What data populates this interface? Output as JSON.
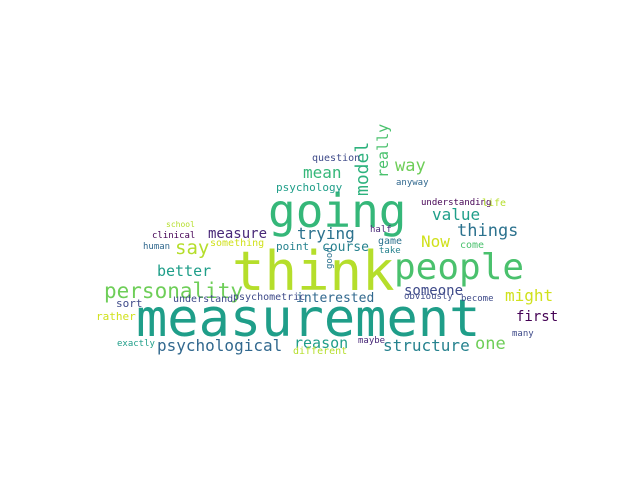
{
  "words": [
    {
      "text": "measurement",
      "color": "#1f9e89"
    },
    {
      "text": "think",
      "color": "#b5de2b"
    },
    {
      "text": "going",
      "color": "#35b779"
    },
    {
      "text": "people",
      "color": "#4ac16d"
    },
    {
      "text": "personality",
      "color": "#6ece58"
    },
    {
      "text": "psychological",
      "color": "#31688e"
    },
    {
      "text": "structure",
      "color": "#26828e"
    },
    {
      "text": "model",
      "color": "#2db27d"
    },
    {
      "text": "really",
      "color": "#4ac16d"
    },
    {
      "text": "way",
      "color": "#6ece58"
    },
    {
      "text": "mean",
      "color": "#35b779"
    },
    {
      "text": "things",
      "color": "#2c728e"
    },
    {
      "text": "value",
      "color": "#1f9e89"
    },
    {
      "text": "trying",
      "color": "#2c728e"
    },
    {
      "text": "say",
      "color": "#b5de2b"
    },
    {
      "text": "measure",
      "color": "#482878"
    },
    {
      "text": "better",
      "color": "#1f9e89"
    },
    {
      "text": "Now",
      "color": "#d0e11c"
    },
    {
      "text": "might",
      "color": "#d0e11c"
    },
    {
      "text": "someone",
      "color": "#3e4a89"
    },
    {
      "text": "reason",
      "color": "#1f9e89"
    },
    {
      "text": "course",
      "color": "#26828e"
    },
    {
      "text": "one",
      "color": "#6ece58"
    },
    {
      "text": "first",
      "color": "#440154"
    },
    {
      "text": "interested",
      "color": "#31688e"
    },
    {
      "text": "psychology",
      "color": "#1f9e89"
    },
    {
      "text": "question",
      "color": "#3e4a89"
    },
    {
      "text": "anyway",
      "color": "#31688e"
    },
    {
      "text": "understanding",
      "color": "#440154"
    },
    {
      "text": "life",
      "color": "#b5de2b"
    },
    {
      "text": "school",
      "color": "#b5de2b"
    },
    {
      "text": "clinical",
      "color": "#440154"
    },
    {
      "text": "human",
      "color": "#31688e"
    },
    {
      "text": "something",
      "color": "#d0e11c"
    },
    {
      "text": "point",
      "color": "#26828e"
    },
    {
      "text": "half",
      "color": "#482878"
    },
    {
      "text": "game",
      "color": "#2c728e"
    },
    {
      "text": "take",
      "color": "#26828e"
    },
    {
      "text": "come",
      "color": "#4ac16d"
    },
    {
      "text": "good",
      "color": "#2c728e"
    },
    {
      "text": "sort",
      "color": "#3e4a89"
    },
    {
      "text": "understand",
      "color": "#3e4a89"
    },
    {
      "text": "psychometric",
      "color": "#3e4a89"
    },
    {
      "text": "obviously",
      "color": "#3e4a89"
    },
    {
      "text": "become",
      "color": "#3e4a89"
    },
    {
      "text": "rather",
      "color": "#d0e11c"
    },
    {
      "text": "many",
      "color": "#3e4a89"
    },
    {
      "text": "exactly",
      "color": "#1f9e89"
    },
    {
      "text": "maybe",
      "color": "#482878"
    },
    {
      "text": "different",
      "color": "#b5de2b"
    }
  ]
}
